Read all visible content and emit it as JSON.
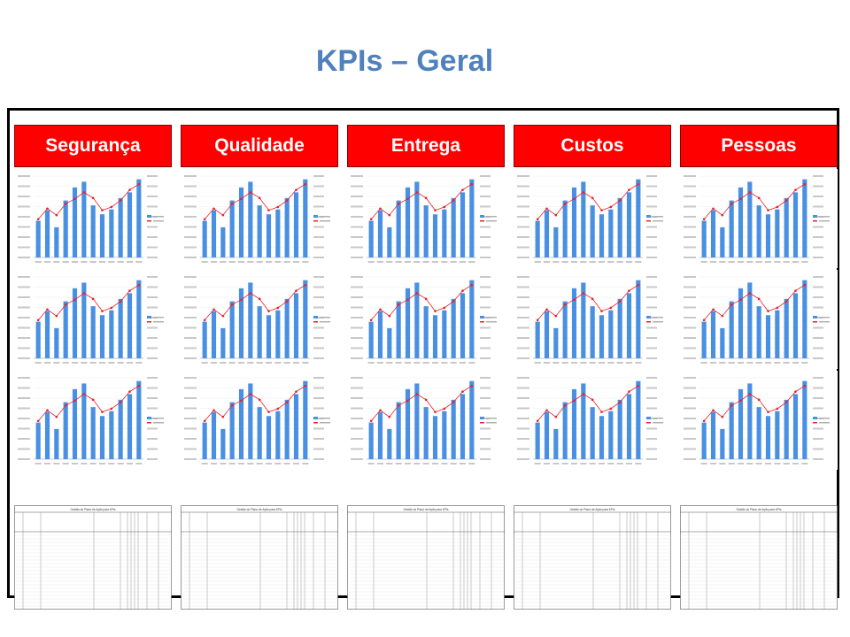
{
  "title": "KPIs – Geral",
  "colors": {
    "title": "#4f81bd",
    "header_bg": "#ff0000",
    "bar": "#4a90e2",
    "line": "#e8212b",
    "border": "#000000"
  },
  "categories": [
    "Segurança",
    "Qualidade",
    "Entrega",
    "Custos",
    "Pessoas"
  ],
  "chart_data": {
    "type": "bar",
    "grid_layout": "5 columns x 3 rows of identical combo (bar + line) charts",
    "categories": [
      "",
      "",
      "",
      "",
      "",
      "",
      "",
      "",
      "",
      "",
      "",
      ""
    ],
    "series": [
      {
        "values": [
          45,
          58,
          37,
          70,
          86,
          93,
          64,
          53,
          59,
          73,
          80,
          96
        ],
        "type": "bar"
      },
      {
        "values": [
          47,
          60,
          52,
          66,
          72,
          80,
          73,
          58,
          62,
          70,
          83,
          90
        ],
        "type": "line"
      }
    ],
    "ylim": [
      0,
      100
    ]
  },
  "plan_table": {
    "title": "Gestão do Plano de Ação para KPIs"
  }
}
